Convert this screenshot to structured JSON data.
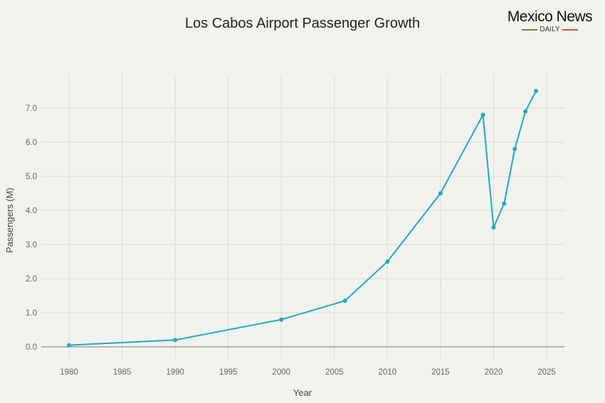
{
  "logo": {
    "main": "Mexico News",
    "sub": "DAILY",
    "colors": {
      "left_bar": "#5a8a3c",
      "right_bar": "#d0573a"
    }
  },
  "chart_data": {
    "type": "line",
    "title": "Los Cabos Airport Passenger Growth",
    "xlabel": "Year",
    "ylabel": "Passengers (M)",
    "xlim": [
      1976.5,
      2026.5
    ],
    "ylim": [
      -0.35,
      8.0
    ],
    "xticks": [
      1980,
      1985,
      1990,
      1995,
      2000,
      2005,
      2010,
      2015,
      2020,
      2025
    ],
    "yticks": [
      "0.0",
      "1.0",
      "2.0",
      "3.0",
      "4.0",
      "5.0",
      "6.0",
      "7.0"
    ],
    "grid": true,
    "line_color": "#1fa9c0",
    "x": [
      1980,
      1990,
      2000,
      2006,
      2010,
      2015,
      2019,
      2020,
      2021,
      2022,
      2023,
      2024
    ],
    "y": [
      0.05,
      0.2,
      0.8,
      1.35,
      2.5,
      4.5,
      6.8,
      3.5,
      4.2,
      5.8,
      6.9,
      7.5
    ]
  }
}
